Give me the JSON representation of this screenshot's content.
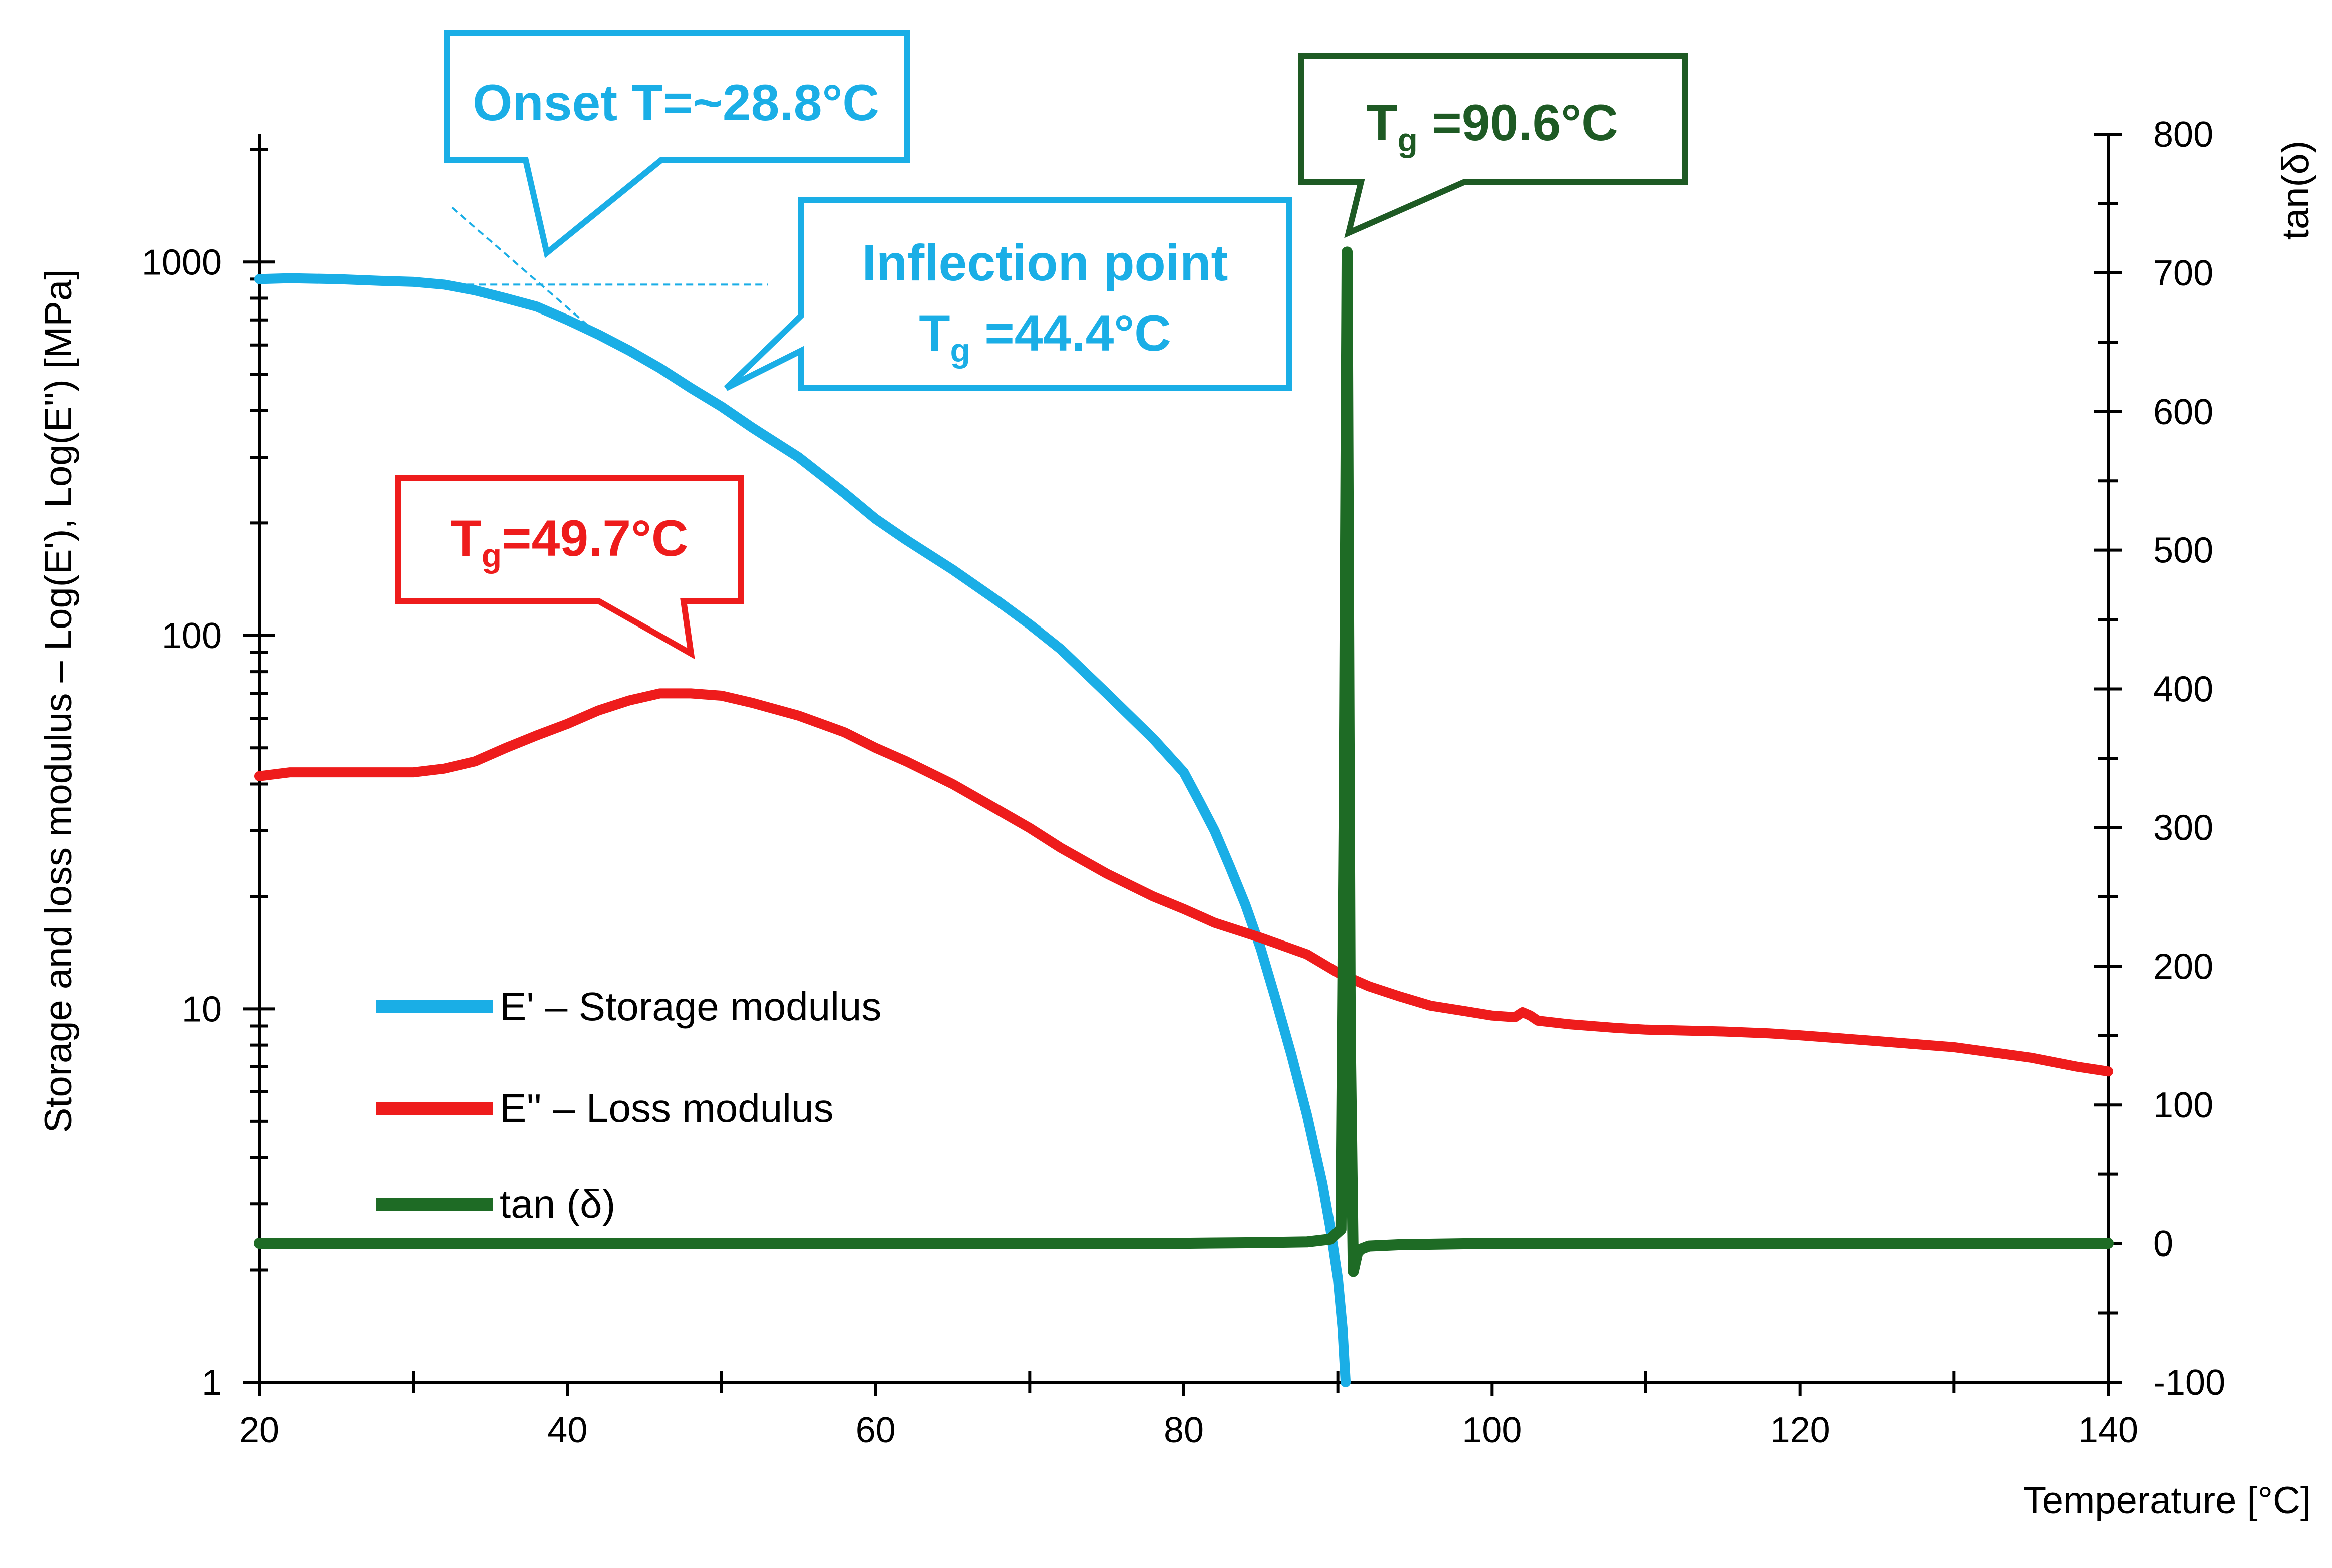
{
  "chart_data": {
    "type": "line",
    "xlabel": "Temperature  [°C]",
    "ylabel_left": "Storage and loss modulus – Log(E'),  Log(E'') [MPa]",
    "ylabel_right": "tan(δ)",
    "xlim": [
      20,
      140
    ],
    "ylim_left": [
      1,
      2200
    ],
    "yscale_left": "log",
    "ylim_right": [
      -100,
      800
    ],
    "x_ticks": [
      "20",
      "40",
      "60",
      "80",
      "100",
      "120",
      "140"
    ],
    "y_left_ticks": [
      "1",
      "10",
      "100",
      "1000"
    ],
    "y_right_ticks": [
      "-100",
      "0",
      "100",
      "200",
      "300",
      "400",
      "500",
      "600",
      "700",
      "800"
    ],
    "grid": false,
    "legend_position": "bottom-left",
    "series": [
      {
        "name": "E' – Storage modulus",
        "axis": "left",
        "color": "#1aaee6",
        "x": [
          20,
          22,
          25,
          28,
          30,
          32,
          34,
          36,
          38,
          40,
          42,
          44,
          46,
          48,
          50,
          52,
          55,
          58,
          60,
          62,
          65,
          68,
          70,
          72,
          75,
          78,
          80,
          81,
          82,
          83,
          84,
          85,
          86,
          87,
          88,
          89,
          89.5,
          90,
          90.3,
          90.5
        ],
        "y": [
          900,
          905,
          900,
          890,
          885,
          870,
          840,
          800,
          760,
          700,
          640,
          580,
          520,
          460,
          410,
          360,
          300,
          240,
          205,
          180,
          150,
          123,
          107,
          92,
          70,
          53,
          43,
          36,
          30,
          24,
          19,
          14.5,
          10.5,
          7.5,
          5.2,
          3.4,
          2.6,
          1.9,
          1.4,
          1.0
        ]
      },
      {
        "name": "E'' – Loss modulus",
        "axis": "left",
        "color": "#ee1c1c",
        "x": [
          20,
          22,
          25,
          28,
          30,
          32,
          34,
          36,
          38,
          40,
          42,
          44,
          46,
          48,
          50,
          52,
          55,
          58,
          60,
          62,
          65,
          68,
          70,
          72,
          75,
          78,
          80,
          82,
          85,
          88,
          90,
          92,
          94,
          96,
          98,
          100,
          101.5,
          102,
          102.5,
          103,
          105,
          108,
          110,
          115,
          118,
          120,
          125,
          130,
          135,
          138,
          140
        ],
        "y": [
          42,
          43,
          43,
          43,
          43,
          44,
          46,
          50,
          54,
          58,
          63,
          67,
          70,
          70,
          69,
          66,
          61,
          55,
          50,
          46,
          40,
          34,
          30.5,
          27,
          23,
          20,
          18.5,
          17,
          15.5,
          14,
          12.5,
          11.5,
          10.8,
          10.2,
          9.9,
          9.6,
          9.5,
          9.8,
          9.6,
          9.3,
          9.1,
          8.9,
          8.8,
          8.7,
          8.6,
          8.5,
          8.2,
          7.9,
          7.4,
          7.0,
          6.8
        ]
      },
      {
        "name": "tan (δ)",
        "axis": "right",
        "color": "#1e6b25",
        "x": [
          20,
          40,
          60,
          80,
          85,
          88,
          89.5,
          90.2,
          90.4,
          90.6,
          90.8,
          91.0,
          91.3,
          92,
          94,
          100,
          120,
          140
        ],
        "y": [
          0,
          0,
          0,
          0,
          0.5,
          1,
          3,
          10,
          300,
          715,
          150,
          -20,
          -5,
          -2,
          -1,
          0,
          0,
          0
        ]
      }
    ],
    "annotations": [
      {
        "lines": [
          "Onset T=~28.8°C"
        ],
        "color": "#1aaee6"
      },
      {
        "lines": [
          "Inflection point",
          "Tg =44.4°C"
        ],
        "color": "#1aaee6"
      },
      {
        "lines": [
          "Tg=49.7°C"
        ],
        "color": "#ee1c1c"
      },
      {
        "lines": [
          "Tg =90.6°C"
        ],
        "color": "#1e6b25"
      }
    ]
  }
}
